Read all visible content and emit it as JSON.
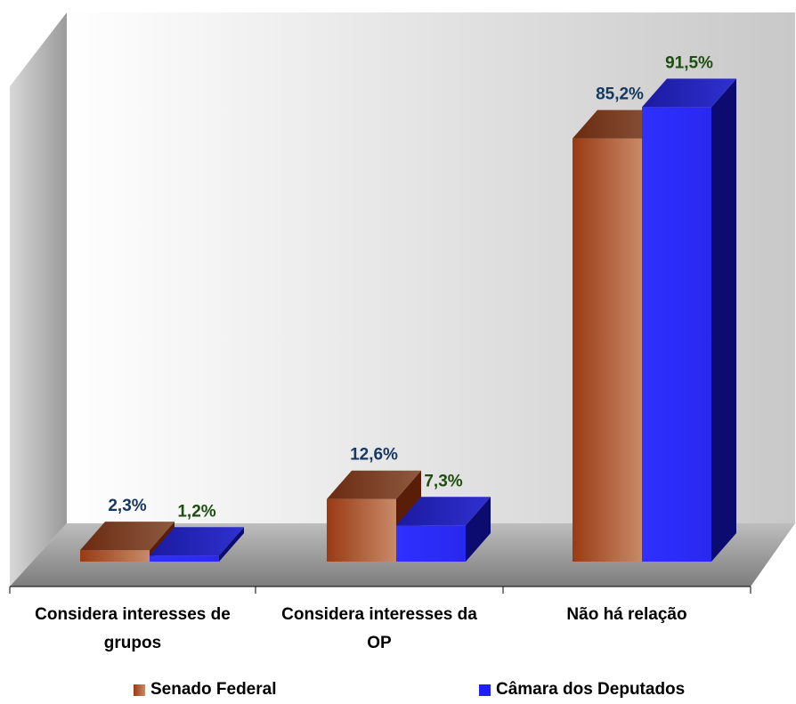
{
  "chart_data": {
    "type": "bar",
    "categories": [
      [
        "Considera interesses de",
        "grupos"
      ],
      [
        "Considera interesses da",
        "OP"
      ],
      [
        "Não há relação"
      ]
    ],
    "series": [
      {
        "name": "Senado Federal",
        "values": [
          2.3,
          12.6,
          85.2
        ],
        "labels": [
          "2,3%",
          "12,6%",
          "85,2%"
        ],
        "color": "#b5532a",
        "label_color": "#17375e"
      },
      {
        "name": "Câmara dos Deputados",
        "values": [
          1.2,
          7.3,
          91.5
        ],
        "labels": [
          "1,2%",
          "7,3%",
          "91,5%"
        ],
        "color": "#2020ff",
        "label_color": "#1e4d12"
      }
    ],
    "ylim": [
      0,
      100
    ],
    "grid": false,
    "legend_position": "bottom",
    "three_d": true
  }
}
